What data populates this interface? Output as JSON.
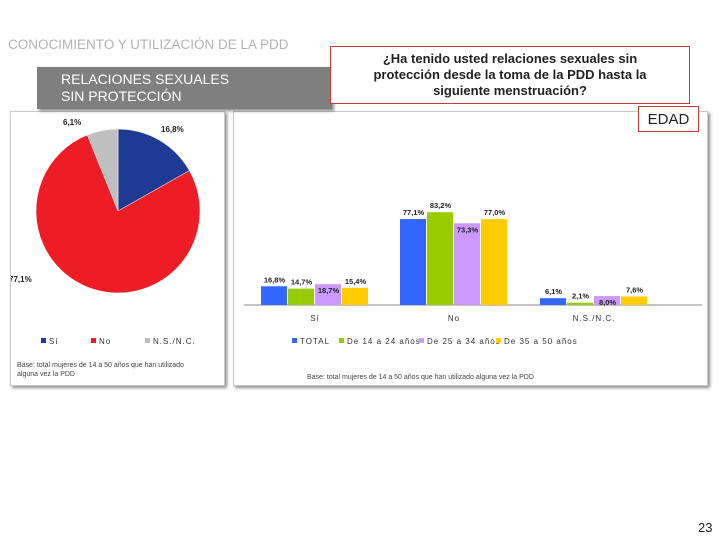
{
  "header": {
    "section_title": "CONOCIMIENTO Y UTILIZACIÓN DE LA PDD",
    "subtitle_line1": "RELACIONES SEXUALES",
    "subtitle_line2": "SIN PROTECCIÓN",
    "question_line1": "¿Ha tenido usted relaciones sexuales sin",
    "question_line2": "protección desde la toma de la PDD hasta la",
    "question_line3": "siguiente menstruación?",
    "edad_label": "EDAD"
  },
  "footer": {
    "page_number": "23"
  },
  "colors": {
    "si": "#1f3a93",
    "no": "#ee1c25",
    "ns_nc": "#bfbfbf",
    "total": "#3366ff",
    "age_14_24": "#99cc00",
    "age_25_34": "#cc99ff",
    "age_35_50": "#ffcc00"
  },
  "chart_data": [
    {
      "type": "pie",
      "slices": [
        {
          "name": "Sí",
          "value": 16.8,
          "label": "16,8%"
        },
        {
          "name": "No",
          "value": 77.1,
          "label": "77,1%"
        },
        {
          "name": "N.S./N.C.",
          "value": 6.1,
          "label": "6,1%"
        }
      ],
      "legend": [
        "Sí",
        "No",
        "N.S./N.C."
      ],
      "legend_position": "bottom",
      "note_line1": "Base: total mujeres de 14 a 50 años que han utilizado",
      "note_line2": "alguna vez la PDD"
    },
    {
      "type": "bar",
      "categories": [
        "Sí",
        "No",
        "N.S./N.C."
      ],
      "series": [
        {
          "name": "TOTAL",
          "values": [
            16.8,
            77.1,
            6.1
          ],
          "labels": [
            "16,8%",
            "77,1%",
            "6,1%"
          ]
        },
        {
          "name": "De 14 a 24 años",
          "values": [
            14.7,
            83.2,
            2.1
          ],
          "labels": [
            "14,7%",
            "83,2%",
            "2,1%"
          ]
        },
        {
          "name": "De 25 a 34 años",
          "values": [
            18.7,
            73.3,
            8.0
          ],
          "labels": [
            "18,7%",
            "73,3%",
            "8,0%"
          ]
        },
        {
          "name": "De 35 a 50 años",
          "values": [
            15.4,
            77.0,
            7.6
          ],
          "labels": [
            "15,4%",
            "77,0%",
            "7,6%"
          ]
        }
      ],
      "ylim": [
        0,
        100
      ],
      "grid": false,
      "legend_position": "bottom",
      "note": "Base: total mujeres de 14 a 50 años que han utilizado alguna vez la PDD"
    }
  ]
}
